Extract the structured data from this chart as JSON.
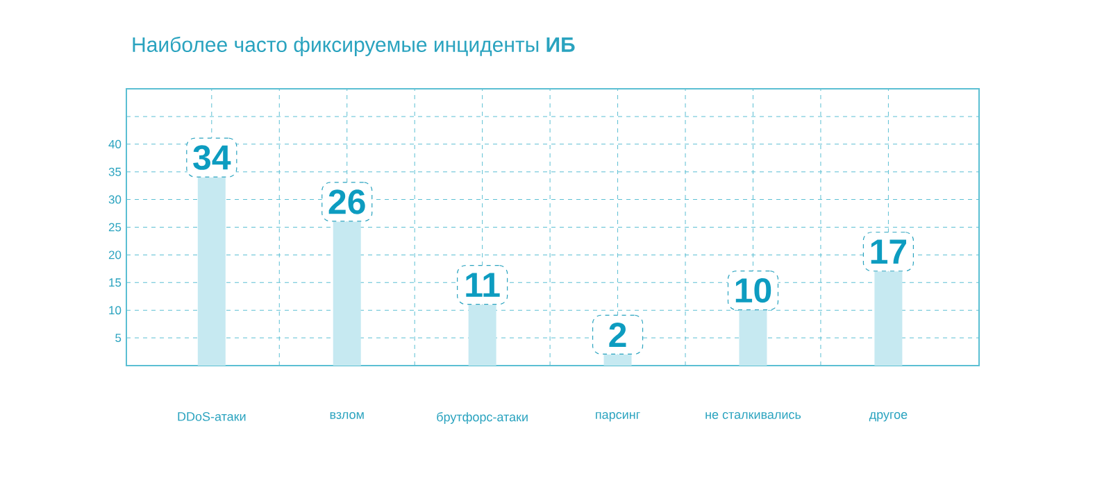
{
  "chart_data": {
    "type": "bar",
    "title": "Наиболее часто фиксируемые инциденты **ИБ**",
    "categories": [
      "DDoS-атаки",
      "взлом",
      "брутфорс-атаки",
      "парсинг",
      "не сталкивались",
      "другое"
    ],
    "values": [
      34,
      26,
      11,
      2,
      10,
      17
    ],
    "color": "#c6e9f1",
    "ylim": [
      0,
      50
    ],
    "yticks": [
      5,
      10,
      15,
      20,
      25,
      30,
      35,
      40,
      {
        "value": 45,
        "label": null
      },
      {
        "value": 50,
        "label": null
      }
    ],
    "grid": true,
    "data_labels": true
  }
}
